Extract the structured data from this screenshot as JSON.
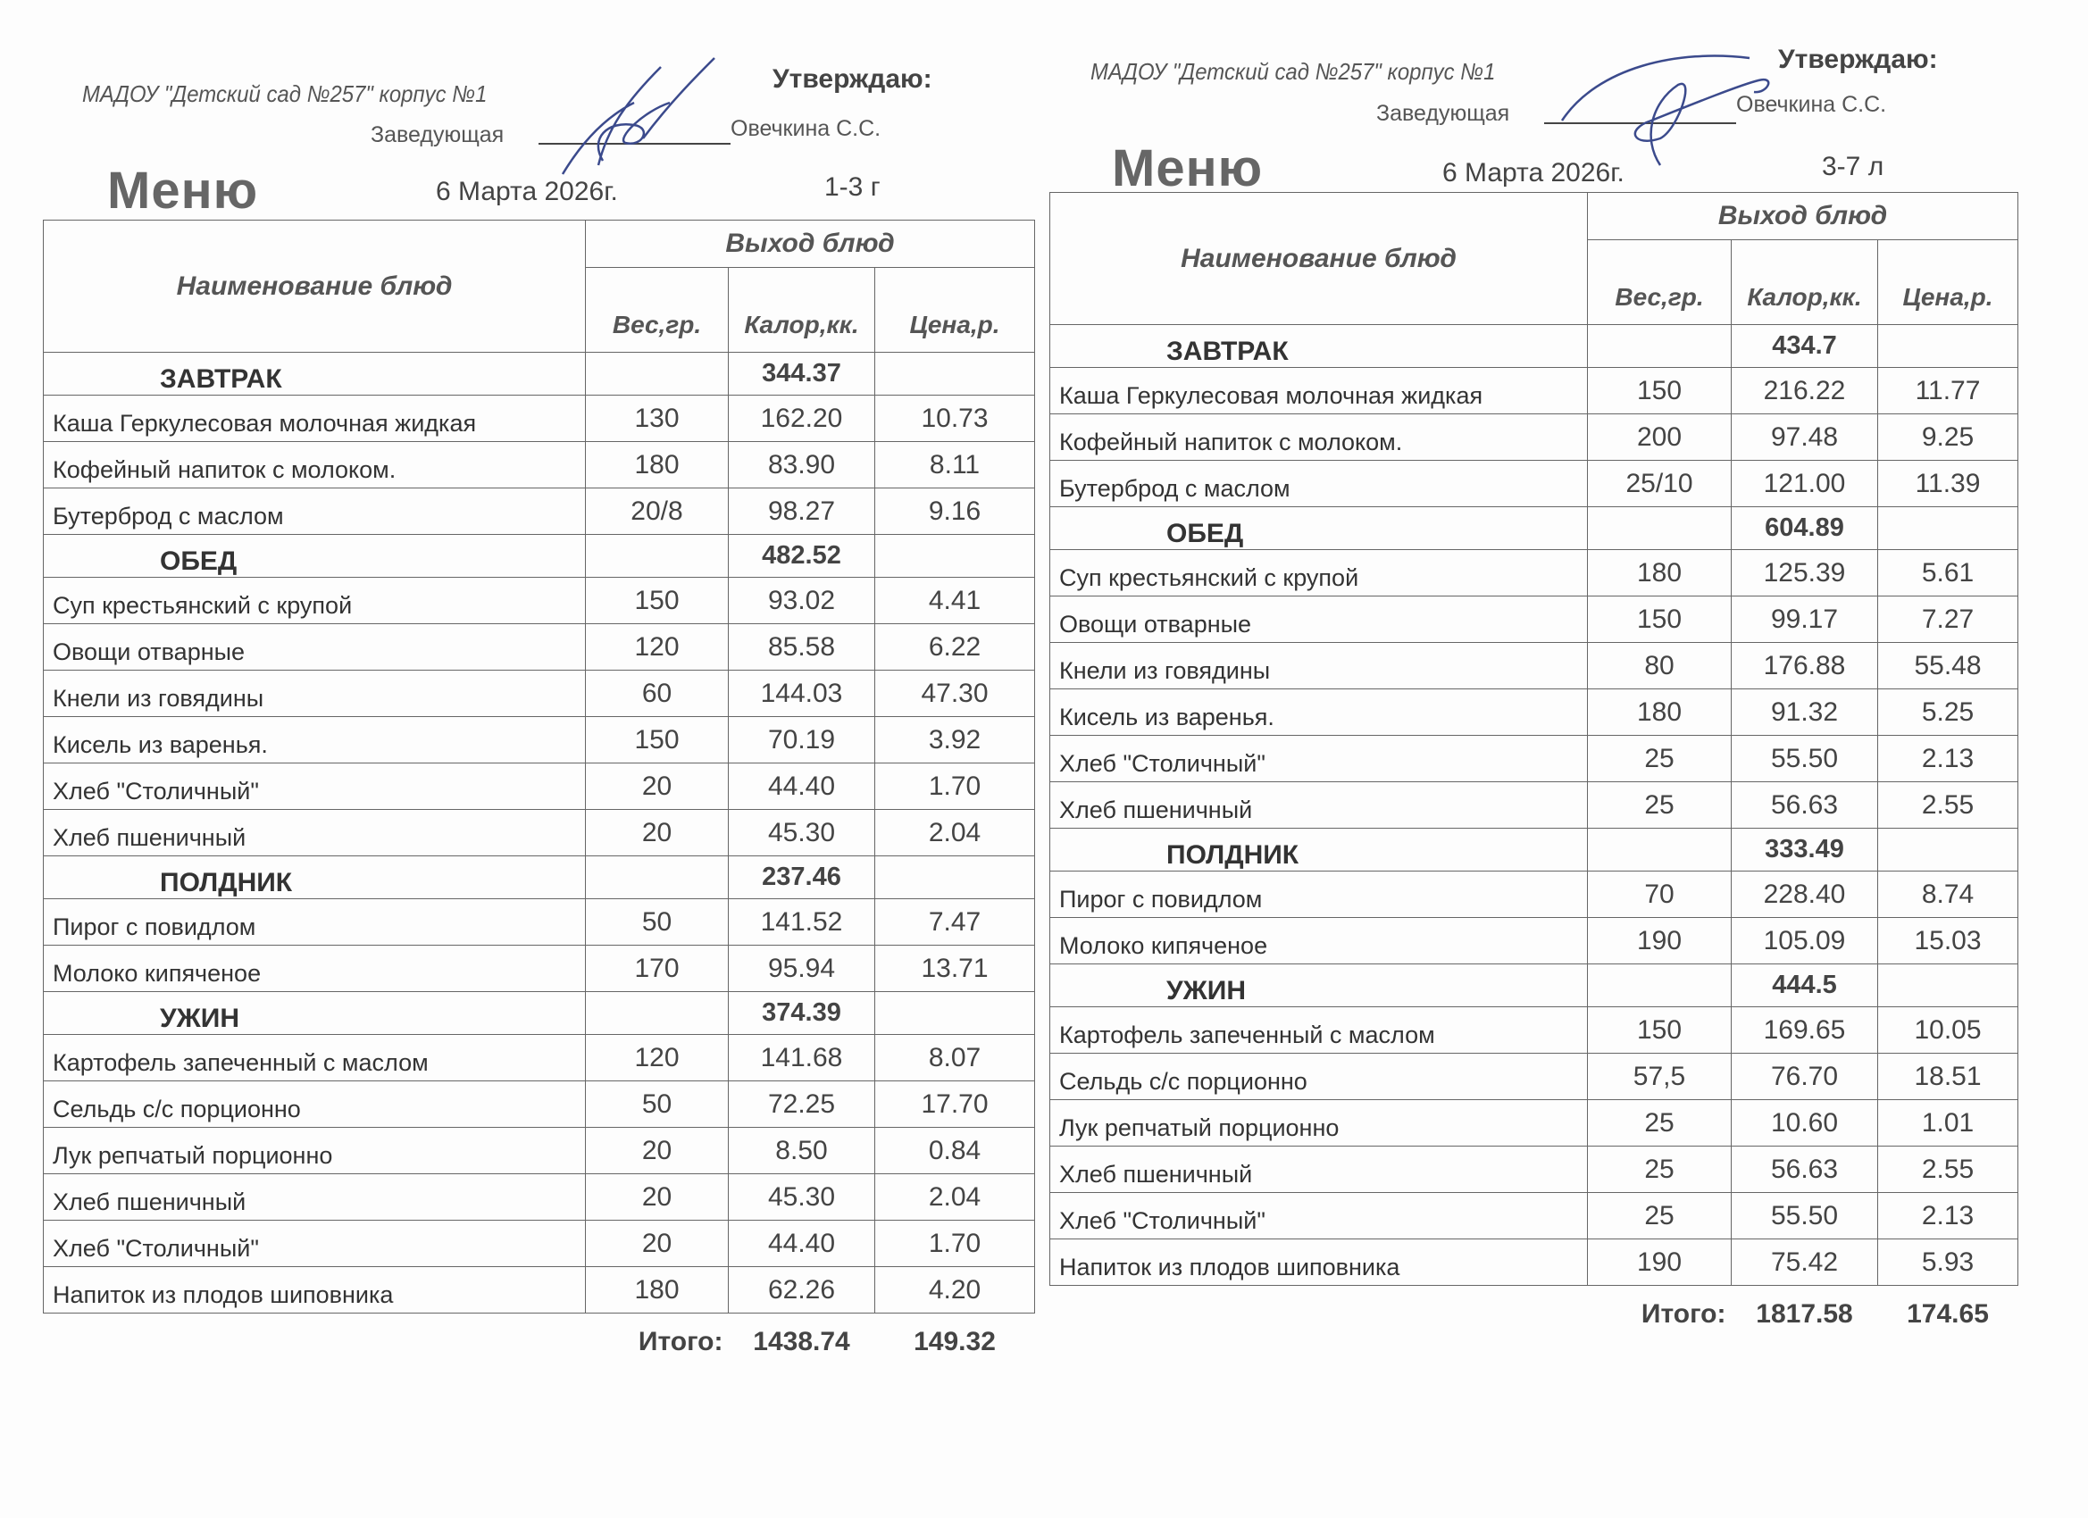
{
  "menus": [
    {
      "organization": "МАДОУ \"Детский сад №257\" корпус №1",
      "approve": "Утверждаю:",
      "head_role": "Заведующая",
      "head_name": "Овечкина С.С.",
      "title": "Меню",
      "date": "6 Марта 2026г.",
      "age_group": "1-3 г",
      "headers": {
        "name": "Наименование блюд",
        "output": "Выход блюд",
        "weight": "Вес,гр.",
        "calories": "Калор,кк.",
        "price": "Цена,р."
      },
      "rows": [
        {
          "section": "ЗАВТРАК",
          "calories": "344.37"
        },
        {
          "name": "Каша Геркулесовая молочная жидкая",
          "weight": "130",
          "calories": "162.20",
          "price": "10.73"
        },
        {
          "name": "Кофейный напиток с молоком.",
          "weight": "180",
          "calories": "83.90",
          "price": "8.11"
        },
        {
          "name": "Бутерброд с маслом",
          "weight": "20/8",
          "calories": "98.27",
          "price": "9.16"
        },
        {
          "section": "ОБЕД",
          "calories": "482.52"
        },
        {
          "name": "Суп крестьянский с крупой",
          "weight": "150",
          "calories": "93.02",
          "price": "4.41"
        },
        {
          "name": "Овощи отварные",
          "weight": "120",
          "calories": "85.58",
          "price": "6.22"
        },
        {
          "name": "Кнели из говядины",
          "weight": "60",
          "calories": "144.03",
          "price": "47.30"
        },
        {
          "name": "Кисель из варенья.",
          "weight": "150",
          "calories": "70.19",
          "price": "3.92"
        },
        {
          "name": "Хлеб \"Столичный\"",
          "weight": "20",
          "calories": "44.40",
          "price": "1.70"
        },
        {
          "name": "Хлеб пшеничный",
          "weight": "20",
          "calories": "45.30",
          "price": "2.04"
        },
        {
          "section": "ПОЛДНИК",
          "calories": "237.46"
        },
        {
          "name": "Пирог с повидлом",
          "weight": "50",
          "calories": "141.52",
          "price": "7.47"
        },
        {
          "name": "Молоко кипяченое",
          "weight": "170",
          "calories": "95.94",
          "price": "13.71"
        },
        {
          "section": "УЖИН",
          "calories": "374.39"
        },
        {
          "name": "Картофель запеченный с маслом",
          "weight": "120",
          "calories": "141.68",
          "price": "8.07"
        },
        {
          "name": "Сельдь с/с порционно",
          "weight": "50",
          "calories": "72.25",
          "price": "17.70"
        },
        {
          "name": "Лук репчатый  порционно",
          "weight": "20",
          "calories": "8.50",
          "price": "0.84"
        },
        {
          "name": "Хлеб пшеничный",
          "weight": "20",
          "calories": "45.30",
          "price": "2.04"
        },
        {
          "name": "Хлеб \"Столичный\"",
          "weight": "20",
          "calories": "44.40",
          "price": "1.70"
        },
        {
          "name": "Напиток из плодов шиповника",
          "weight": "180",
          "calories": "62.26",
          "price": "4.20"
        }
      ],
      "total": {
        "label": "Итого:",
        "calories": "1438.74",
        "price": "149.32"
      }
    },
    {
      "organization": "МАДОУ \"Детский сад №257\" корпус №1",
      "approve": "Утверждаю:",
      "head_role": "Заведующая",
      "head_name": "Овечкина С.С.",
      "title": "Меню",
      "date": "6 Марта 2026г.",
      "age_group": "3-7 л",
      "headers": {
        "name": "Наименование блюд",
        "output": "Выход блюд",
        "weight": "Вес,гр.",
        "calories": "Калор,кк.",
        "price": "Цена,р."
      },
      "rows": [
        {
          "section": "ЗАВТРАК",
          "calories": "434.7"
        },
        {
          "name": "Каша Геркулесовая молочная жидкая",
          "weight": "150",
          "calories": "216.22",
          "price": "11.77"
        },
        {
          "name": "Кофейный напиток с молоком.",
          "weight": "200",
          "calories": "97.48",
          "price": "9.25"
        },
        {
          "name": "Бутерброд с маслом",
          "weight": "25/10",
          "calories": "121.00",
          "price": "11.39"
        },
        {
          "section": "ОБЕД",
          "calories": "604.89"
        },
        {
          "name": "Суп крестьянский с крупой",
          "weight": "180",
          "calories": "125.39",
          "price": "5.61"
        },
        {
          "name": "Овощи отварные",
          "weight": "150",
          "calories": "99.17",
          "price": "7.27"
        },
        {
          "name": "Кнели из говядины",
          "weight": "80",
          "calories": "176.88",
          "price": "55.48"
        },
        {
          "name": "Кисель из варенья.",
          "weight": "180",
          "calories": "91.32",
          "price": "5.25"
        },
        {
          "name": "Хлеб \"Столичный\"",
          "weight": "25",
          "calories": "55.50",
          "price": "2.13"
        },
        {
          "name": "Хлеб пшеничный",
          "weight": "25",
          "calories": "56.63",
          "price": "2.55"
        },
        {
          "section": "ПОЛДНИК",
          "calories": "333.49"
        },
        {
          "name": "Пирог с повидлом",
          "weight": "70",
          "calories": "228.40",
          "price": "8.74"
        },
        {
          "name": "Молоко кипяченое",
          "weight": "190",
          "calories": "105.09",
          "price": "15.03"
        },
        {
          "section": "УЖИН",
          "calories": "444.5"
        },
        {
          "name": "Картофель запеченный с маслом",
          "weight": "150",
          "calories": "169.65",
          "price": "10.05"
        },
        {
          "name": "Сельдь с/с порционно",
          "weight": "57,5",
          "calories": "76.70",
          "price": "18.51"
        },
        {
          "name": "Лук репчатый  порционно",
          "weight": "25",
          "calories": "10.60",
          "price": "1.01"
        },
        {
          "name": "Хлеб пшеничный",
          "weight": "25",
          "calories": "56.63",
          "price": "2.55"
        },
        {
          "name": "Хлеб \"Столичный\"",
          "weight": "25",
          "calories": "55.50",
          "price": "2.13"
        },
        {
          "name": "Напиток из плодов шиповника",
          "weight": "190",
          "calories": "75.42",
          "price": "5.93"
        }
      ],
      "total": {
        "label": "Итого:",
        "calories": "1817.58",
        "price": "174.65"
      }
    }
  ],
  "colors": {
    "ink": "#3a3a3a",
    "signature": "#3b4a8c",
    "paper": "#fdfdfd"
  }
}
